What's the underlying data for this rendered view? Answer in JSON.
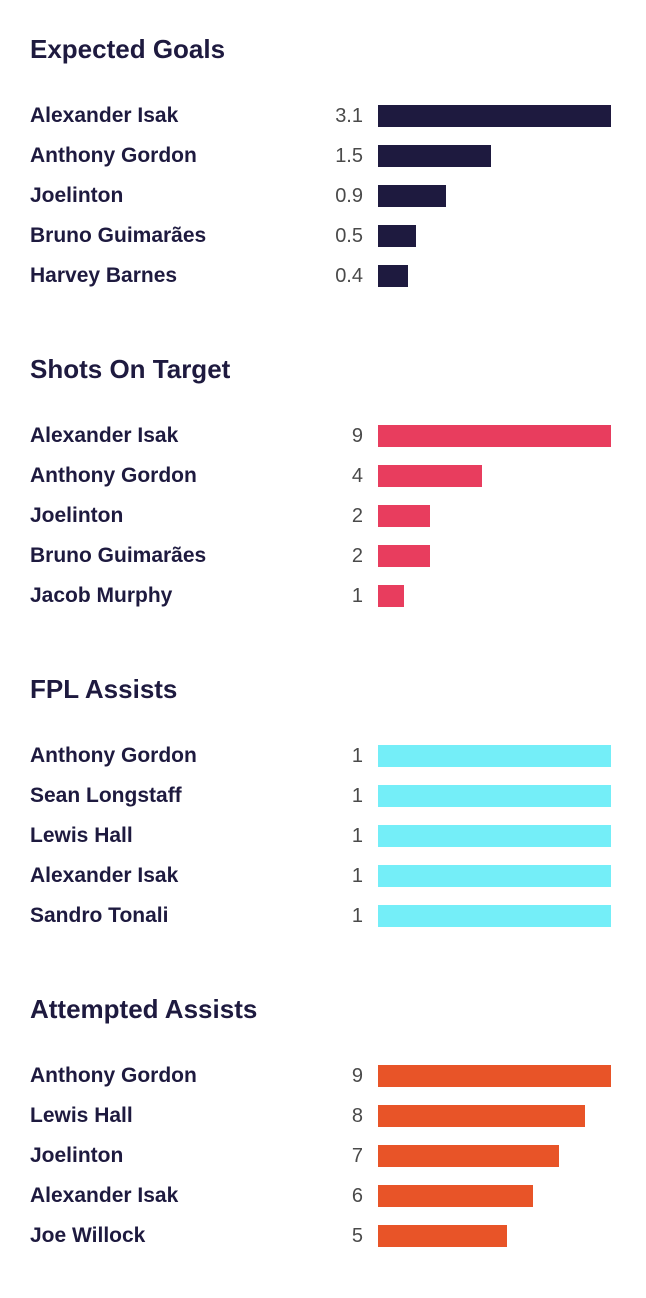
{
  "colors": {
    "text": "#1e1a3f",
    "value_text": "#4a4a4a"
  },
  "chart_data": [
    {
      "type": "bar",
      "orientation": "horizontal",
      "title": "Expected Goals",
      "color": "#1e1a3f",
      "max": 3.1,
      "categories": [
        "Alexander Isak",
        "Anthony Gordon",
        "Joelinton",
        "Bruno Guimarães",
        "Harvey Barnes"
      ],
      "labels": [
        "3.1",
        "1.5",
        "0.9",
        "0.5",
        "0.4"
      ],
      "values": [
        3.1,
        1.5,
        0.9,
        0.5,
        0.4
      ]
    },
    {
      "type": "bar",
      "orientation": "horizontal",
      "title": "Shots On Target",
      "color": "#e83d5e",
      "max": 9,
      "categories": [
        "Alexander Isak",
        "Anthony Gordon",
        "Joelinton",
        "Bruno Guimarães",
        "Jacob Murphy"
      ],
      "labels": [
        "9",
        "4",
        "2",
        "2",
        "1"
      ],
      "values": [
        9,
        4,
        2,
        2,
        1
      ]
    },
    {
      "type": "bar",
      "orientation": "horizontal",
      "title": "FPL Assists",
      "color": "#74eef8",
      "max": 1,
      "categories": [
        "Anthony Gordon",
        "Sean Longstaff",
        "Lewis Hall",
        "Alexander Isak",
        "Sandro Tonali"
      ],
      "labels": [
        "1",
        "1",
        "1",
        "1",
        "1"
      ],
      "values": [
        1,
        1,
        1,
        1,
        1
      ]
    },
    {
      "type": "bar",
      "orientation": "horizontal",
      "title": "Attempted Assists",
      "color": "#e85428",
      "max": 9,
      "categories": [
        "Anthony Gordon",
        "Lewis Hall",
        "Joelinton",
        "Alexander Isak",
        "Joe Willock"
      ],
      "labels": [
        "9",
        "8",
        "7",
        "6",
        "5"
      ],
      "values": [
        9,
        8,
        7,
        6,
        5
      ]
    }
  ]
}
